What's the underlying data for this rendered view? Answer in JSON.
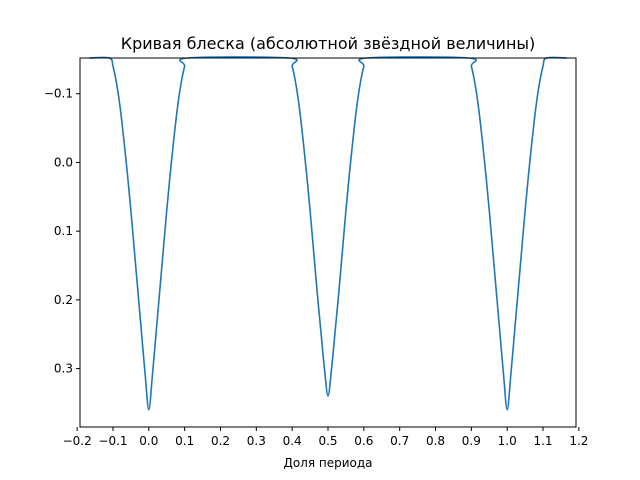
{
  "chart_data": {
    "type": "line",
    "title": "Кривая блеска (абсолютной звёздной величины)",
    "xlabel": "Доля периода",
    "ylabel": "",
    "xlim": [
      -0.192,
      1.192
    ],
    "ylim": [
      0.385,
      -0.152
    ],
    "y_inverted": true,
    "grid": false,
    "legend": "none",
    "xticks": [
      -0.2,
      -0.1,
      0.0,
      0.1,
      0.2,
      0.3,
      0.4,
      0.5,
      0.6,
      0.7,
      0.8,
      0.9,
      1.0,
      1.1,
      1.2
    ],
    "xtick_labels": [
      "−0.2",
      "−0.1",
      "0.0",
      "0.1",
      "0.2",
      "0.3",
      "0.4",
      "0.5",
      "0.6",
      "0.7",
      "0.8",
      "0.9",
      "1.0",
      "1.1",
      "1.2"
    ],
    "yticks": [
      -0.1,
      0.0,
      0.1,
      0.2,
      0.3
    ],
    "ytick_labels": [
      "−0.1",
      "0.0",
      "0.1",
      "0.2",
      "0.3"
    ],
    "series": [
      {
        "color": "#1f77b4",
        "x": [
          -0.167,
          -0.11,
          -0.1,
          -0.09,
          -0.08,
          -0.07,
          -0.06,
          -0.05,
          -0.04,
          -0.03,
          -0.02,
          -0.01,
          0.0,
          0.01,
          0.02,
          0.03,
          0.04,
          0.05,
          0.06,
          0.07,
          0.08,
          0.09,
          0.1,
          0.11,
          0.39,
          0.4,
          0.41,
          0.42,
          0.43,
          0.44,
          0.45,
          0.46,
          0.47,
          0.48,
          0.49,
          0.5,
          0.51,
          0.52,
          0.53,
          0.54,
          0.55,
          0.56,
          0.57,
          0.58,
          0.59,
          0.6,
          0.61,
          0.89,
          0.9,
          0.91,
          0.92,
          0.93,
          0.94,
          0.95,
          0.96,
          0.97,
          0.98,
          0.99,
          1.0,
          1.01,
          1.02,
          1.03,
          1.04,
          1.05,
          1.06,
          1.07,
          1.08,
          1.09,
          1.1,
          1.11,
          1.167
        ],
        "y": [
          -0.152,
          -0.152,
          -0.14,
          -0.115,
          -0.08,
          -0.035,
          0.015,
          0.07,
          0.13,
          0.19,
          0.25,
          0.31,
          0.36,
          0.31,
          0.25,
          0.19,
          0.13,
          0.07,
          0.015,
          -0.035,
          -0.08,
          -0.115,
          -0.14,
          -0.152,
          -0.152,
          -0.14,
          -0.115,
          -0.08,
          -0.035,
          0.015,
          0.07,
          0.13,
          0.19,
          0.245,
          0.3,
          0.34,
          0.3,
          0.245,
          0.19,
          0.13,
          0.07,
          0.015,
          -0.035,
          -0.08,
          -0.115,
          -0.14,
          -0.152,
          -0.152,
          -0.14,
          -0.115,
          -0.08,
          -0.035,
          0.015,
          0.07,
          0.13,
          0.19,
          0.25,
          0.31,
          0.36,
          0.31,
          0.25,
          0.19,
          0.13,
          0.07,
          0.015,
          -0.035,
          -0.08,
          -0.115,
          -0.14,
          -0.152,
          -0.152
        ]
      }
    ]
  }
}
